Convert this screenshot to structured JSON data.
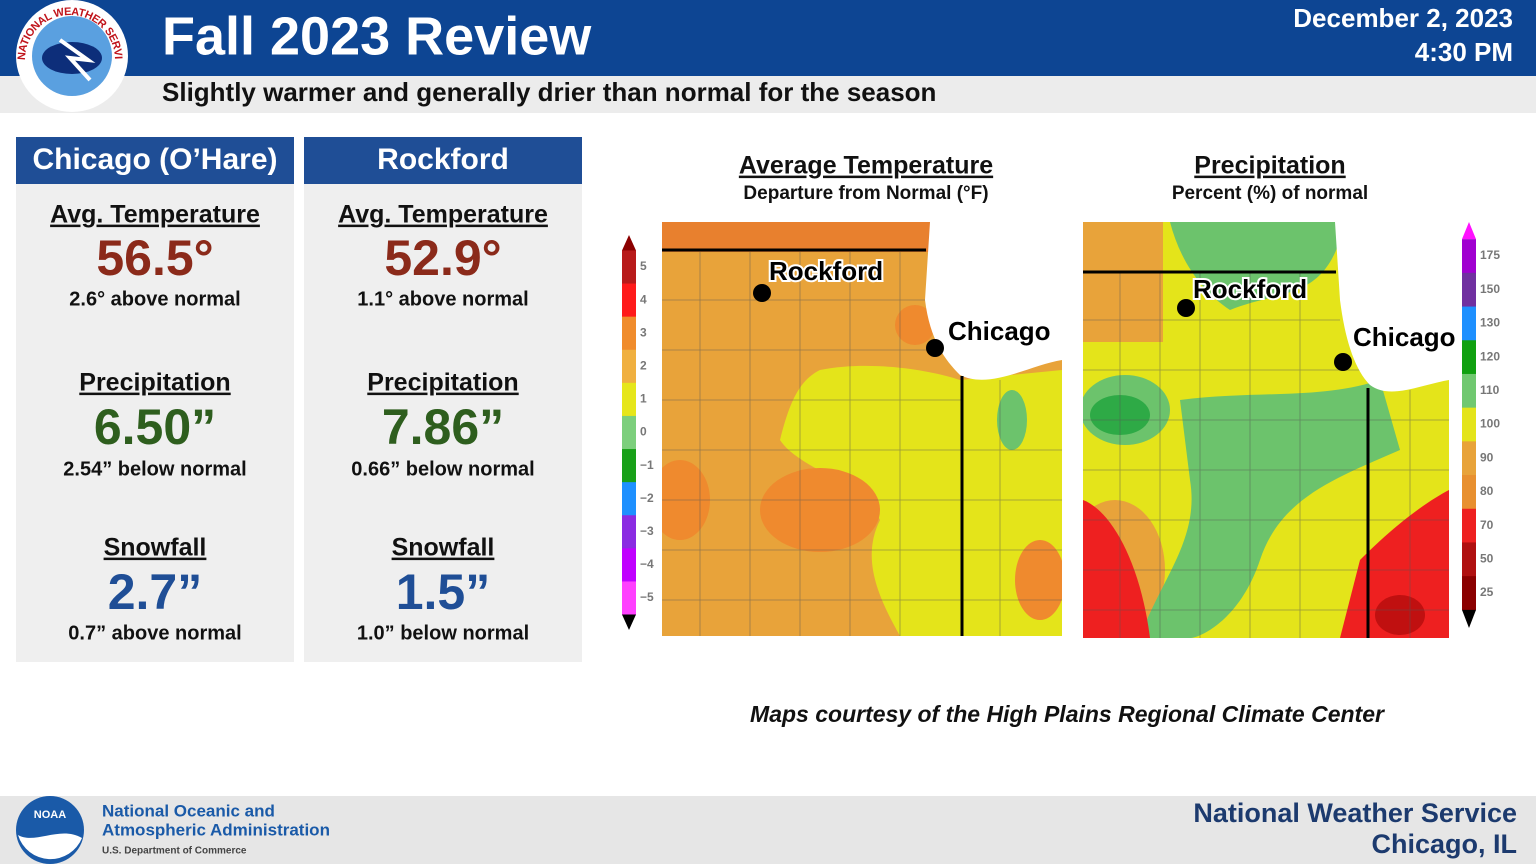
{
  "header": {
    "logo_text": "NATIONAL WEATHER SERVICE",
    "title": "Fall 2023 Review",
    "date": "December 2, 2023",
    "time": "4:30 PM",
    "subtitle": "Slightly warmer and generally drier than normal for the season"
  },
  "stations": [
    {
      "name": "Chicago (O’Hare)",
      "stats": [
        {
          "heading": "Avg. Temperature",
          "value": "56.5°",
          "note": "2.6° above normal"
        },
        {
          "heading": "Precipitation",
          "value": "6.50”",
          "note": "2.54” below normal"
        },
        {
          "heading": "Snowfall",
          "value": "2.7”",
          "note": "0.7” above normal"
        }
      ]
    },
    {
      "name": "Rockford",
      "stats": [
        {
          "heading": "Avg. Temperature",
          "value": "52.9°",
          "note": "1.1° above normal"
        },
        {
          "heading": "Precipitation",
          "value": "7.86”",
          "note": "0.66” below normal"
        },
        {
          "heading": "Snowfall",
          "value": "1.5”",
          "note": "1.0” below normal"
        }
      ]
    }
  ],
  "maps": [
    {
      "title": "Average Temperature",
      "subtitle": "Departure from Normal (°F)",
      "legend": [
        "5",
        "4",
        "3",
        "2",
        "1",
        "0",
        "−1",
        "−2",
        "−3",
        "−4",
        "−5"
      ],
      "places": [
        "Rockford",
        "Chicago"
      ]
    },
    {
      "title": "Precipitation",
      "subtitle": "Percent (%) of normal",
      "legend": [
        "175",
        "150",
        "130",
        "120",
        "110",
        "100",
        "90",
        "80",
        "70",
        "50",
        "25"
      ],
      "places": [
        "Rockford",
        "Chicago"
      ]
    }
  ],
  "credit": "Maps courtesy of the High Plains Regional Climate Center",
  "footer": {
    "agency_logo": "NOAA",
    "agency": [
      "National Oceanic and",
      "Atmospheric Administration"
    ],
    "department": "U.S. Department of Commerce",
    "office": "National Weather Service",
    "location": "Chicago, IL"
  }
}
